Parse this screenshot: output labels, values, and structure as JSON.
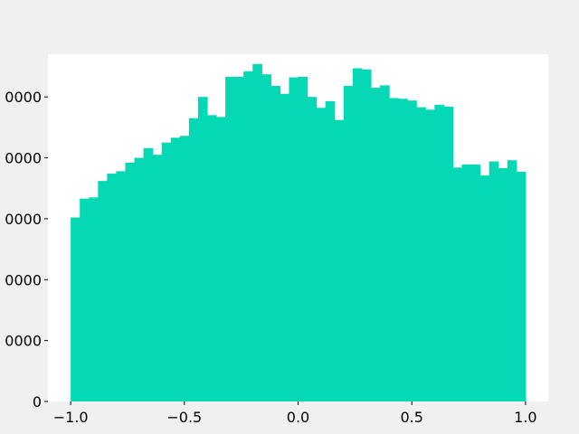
{
  "chart_data": {
    "type": "bar",
    "title": "",
    "xlabel": "",
    "ylabel": "",
    "xlim": [
      -1.1,
      1.1
    ],
    "ylim": [
      0,
      57000
    ],
    "bar_color": "#05d8b4",
    "plot_background": "#ffffff",
    "figure_background": "#f0f0f0",
    "grid": false,
    "x_ticks": [
      {
        "value": -1.0,
        "label": "−1.0"
      },
      {
        "value": -0.5,
        "label": "−0.5"
      },
      {
        "value": 0.0,
        "label": "0.0"
      },
      {
        "value": 0.5,
        "label": "0.5"
      },
      {
        "value": 1.0,
        "label": "1.0"
      }
    ],
    "y_ticks": [
      {
        "value": 0,
        "label": "0"
      },
      {
        "value": 10000,
        "label": "0000"
      },
      {
        "value": 20000,
        "label": "0000"
      },
      {
        "value": 30000,
        "label": "0000"
      },
      {
        "value": 40000,
        "label": "0000"
      },
      {
        "value": 50000,
        "label": "0000"
      }
    ],
    "bin_edges": [
      -1.0,
      -0.96,
      -0.92,
      -0.88,
      -0.84,
      -0.8,
      -0.76,
      -0.72,
      -0.68,
      -0.64,
      -0.6,
      -0.56,
      -0.52,
      -0.48,
      -0.44,
      -0.4,
      -0.36,
      -0.32,
      -0.28,
      -0.24,
      -0.2,
      -0.16,
      -0.12,
      -0.08,
      -0.04,
      0.0,
      0.04,
      0.08,
      0.12,
      0.16,
      0.2,
      0.24,
      0.28,
      0.32,
      0.36,
      0.4,
      0.44,
      0.48,
      0.52,
      0.56,
      0.6,
      0.64,
      0.68,
      0.72,
      0.76,
      0.8,
      0.84,
      0.88,
      0.92,
      0.96,
      1.0
    ],
    "values": [
      30200,
      33300,
      33500,
      36200,
      37400,
      37800,
      39200,
      40000,
      41600,
      40500,
      42500,
      43300,
      43600,
      46500,
      50000,
      47000,
      46700,
      53300,
      53300,
      54200,
      55400,
      53700,
      51800,
      50500,
      53200,
      53300,
      50000,
      48200,
      49300,
      46200,
      51800,
      54700,
      54500,
      51500,
      51900,
      49800,
      49700,
      49400,
      48300,
      47900,
      48700,
      48400,
      38400,
      38900,
      38900,
      37100,
      39400,
      38300,
      39600,
      37700
    ]
  }
}
